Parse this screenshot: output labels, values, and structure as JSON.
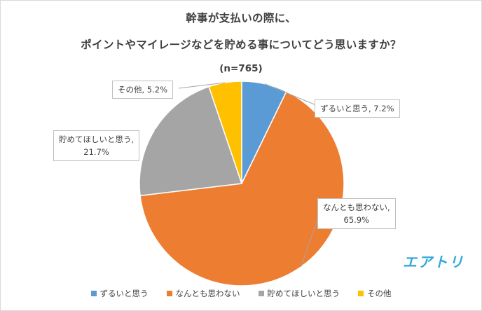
{
  "chart_data": {
    "type": "pie",
    "title_line1": "幹事が支払いの際に、",
    "title_line2": "ポイントやマイレージなどを貯める事についてどう思いますか？",
    "subtitle": "(n=765)",
    "slices": [
      {
        "label": "ずるいと思う",
        "value": 7.2,
        "display": "7.2%",
        "color": "#5b9bd5"
      },
      {
        "label": "なんとも思わない",
        "value": 65.9,
        "display": "65.9%",
        "color": "#ed7d31"
      },
      {
        "label": "貯めてほしいと思う",
        "value": 21.7,
        "display": "21.7%",
        "color": "#a5a5a5"
      },
      {
        "label": "その他",
        "value": 5.2,
        "display": "5.2%",
        "color": "#ffc000"
      }
    ],
    "start_angle": "12 o'clock",
    "direction": "clockwise",
    "legend_position": "bottom"
  },
  "callouts": {
    "c0": "ずるいと思う, 7.2%",
    "c1a": "なんとも思わない,",
    "c1b": "65.9%",
    "c2a": "貯めてほしいと思う,",
    "c2b": "21.7%",
    "c3": "その他, 5.2%"
  },
  "logo": {
    "text": "エアトリ",
    "color": "#31a8d8"
  }
}
